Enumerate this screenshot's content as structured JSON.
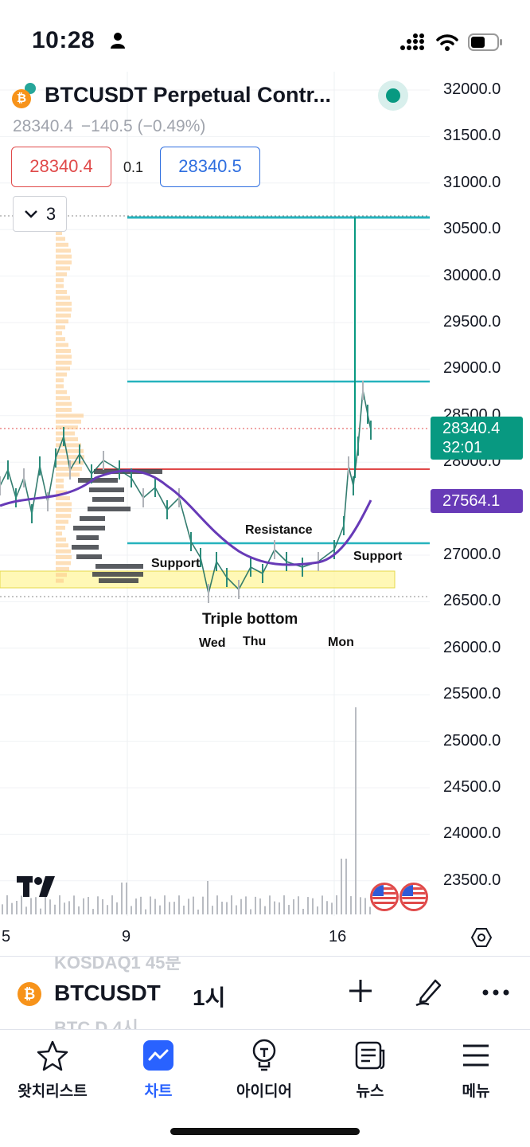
{
  "status_bar": {
    "time": "10:28"
  },
  "header": {
    "symbol_title": "BTCUSDT Perpetual Contr...",
    "last_price": "28340.4",
    "change": "−140.5 (−0.49%)",
    "bid": "28340.4",
    "spread": "0.1",
    "ask": "28340.5",
    "collapse_count": "3"
  },
  "price_axis": {
    "labels": [
      "32000.0",
      "31500.0",
      "31000.0",
      "30500.0",
      "30000.0",
      "29500.0",
      "29000.0",
      "28500.0",
      "28000.0",
      "27500.0",
      "27000.0",
      "26500.0",
      "26000.0",
      "25500.0",
      "25000.0",
      "24500.0",
      "24000.0",
      "23500.0"
    ],
    "current_price": "28340.4",
    "countdown": "32:01",
    "ma_value": "27564.1"
  },
  "time_axis": {
    "labels": [
      "5",
      "9",
      "16"
    ]
  },
  "annotations": {
    "resistance": "Resistance",
    "support_left": "Support",
    "support_right": "Support",
    "pattern": "Triple bottom",
    "day_wed": "Wed",
    "day_thu": "Thu",
    "day_mon": "Mon"
  },
  "colors": {
    "teal_line": "#26b3bd",
    "resistance_red": "#e04a4a",
    "ma_purple": "#673ab7",
    "candle_green": "#089981",
    "support_zone": "#fff59d",
    "accent_blue": "#2962ff"
  },
  "toolbar": {
    "symbol": "BTCUSDT",
    "interval": "1시",
    "ghost_above": "KOSDAQ1      45분",
    "ghost_below": "BTC.D        4시"
  },
  "nav": {
    "watchlist": "왓치리스트",
    "chart": "차트",
    "ideas": "아이디어",
    "news": "뉴스",
    "menu": "메뉴"
  }
}
